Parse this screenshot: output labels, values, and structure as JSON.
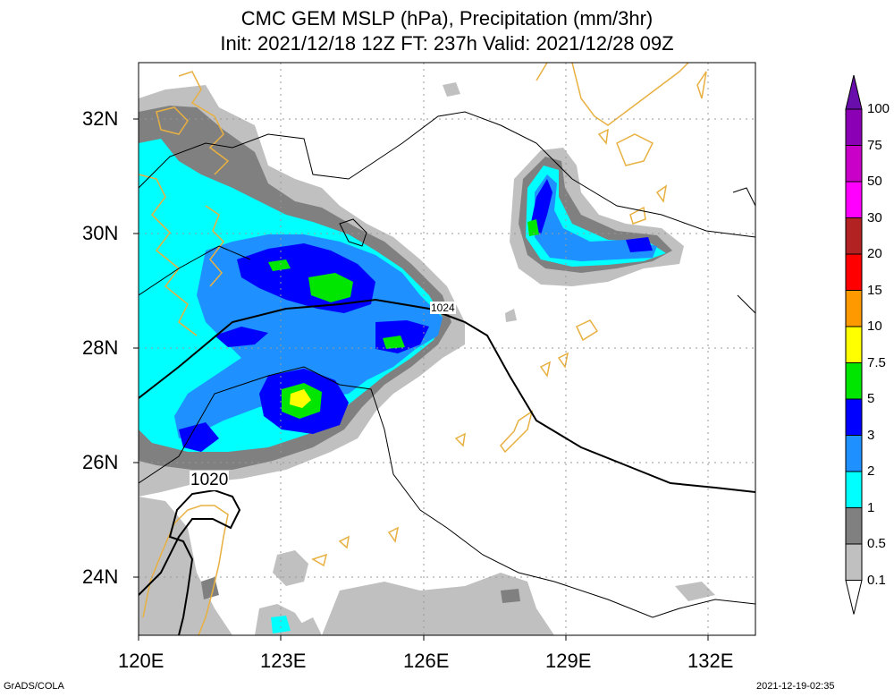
{
  "title": {
    "line1": "CMC GEM MSLP (hPa), Precipitation (mm/3hr)",
    "line2": "Init: 2021/12/18 12Z  FT: 237h  Valid: 2021/12/28 09Z"
  },
  "axes": {
    "lat_labels": [
      "32N",
      "30N",
      "28N",
      "26N",
      "24N"
    ],
    "lon_labels": [
      "120E",
      "123E",
      "126E",
      "129E",
      "132E"
    ]
  },
  "isobars": {
    "label_1024": "1024",
    "label_1020": "1020"
  },
  "colorbar": {
    "labels": [
      "100",
      "75",
      "50",
      "30",
      "20",
      "15",
      "10",
      "7.5",
      "5",
      "3",
      "2",
      "1",
      "0.5",
      "0.1"
    ],
    "colors": [
      "#6a0dad",
      "#8b00b5",
      "#c800c8",
      "#ff00ff",
      "#b22222",
      "#ff0000",
      "#ff9900",
      "#ffff00",
      "#00e600",
      "#0000ff",
      "#1e90ff",
      "#00ffff",
      "#808080",
      "#c0c0c0"
    ],
    "bottom_color": "#ffffff"
  },
  "footer": {
    "left": "GrADS/COLA",
    "right": "2021-12-19-02:35"
  },
  "map_colors": {
    "coast": "#e8b040",
    "grid": "#999999",
    "isobar": "#000000"
  }
}
